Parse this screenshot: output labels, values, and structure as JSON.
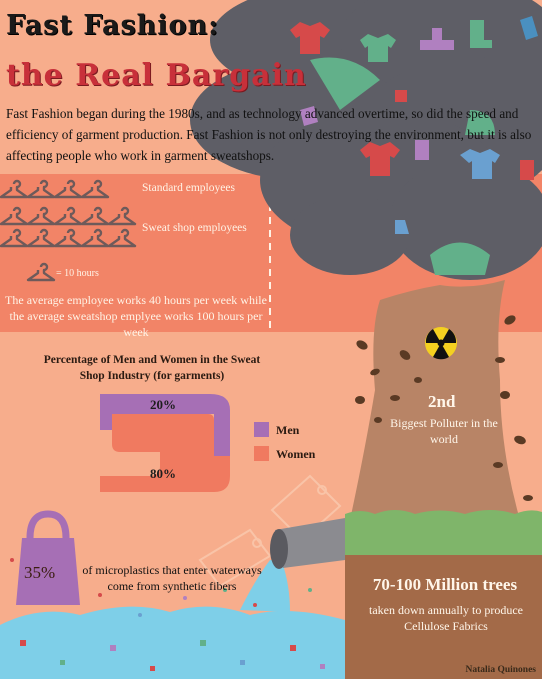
{
  "title": {
    "line1": "Fast Fashion:",
    "line2": "the Real Bargain"
  },
  "intro": "Fast Fashion began during the 1980s, and as technology advanced overtime, so did the speed and efficiency of garment production. Fast Fashion is not only destroying the environment, but it is also affecting people who work in garment sweatshops.",
  "hours": {
    "standard_label": "Standard employees",
    "standard_hangers": 4,
    "sweatshop_label": "Sweat shop employees",
    "sweatshop_hangers": 10,
    "key_label": "= 10 hours",
    "caption": "The average employee works 40 hours per week while the average sweatshop emplyee works 100 hours per week"
  },
  "gender": {
    "title": "Percentage of Men and Women in the Sweat Shop Industry (for garments)",
    "men_pct": "20%",
    "women_pct": "80%",
    "legend_men": "Men",
    "legend_women": "Women",
    "colors": {
      "men": "#a66fb5",
      "women": "#f07a60"
    }
  },
  "microplastics": {
    "value": "35%",
    "text": "of microplastics that enter waterways come from synthetic fibers"
  },
  "polluter": {
    "rank": "2nd",
    "text": "Biggest Polluter in the world"
  },
  "trees": {
    "value": "70-100 Million trees",
    "text": "taken down annually to produce Cellulose Fabrics"
  },
  "credit": "Natalia Quinones",
  "colors": {
    "background": "#f7ad8c",
    "band": "#f28467",
    "smoke": "#5e5e66",
    "trunk": "#b88466",
    "grass": "#7fb56a",
    "soil": "#a36a48",
    "water": "#7ecfe8"
  }
}
